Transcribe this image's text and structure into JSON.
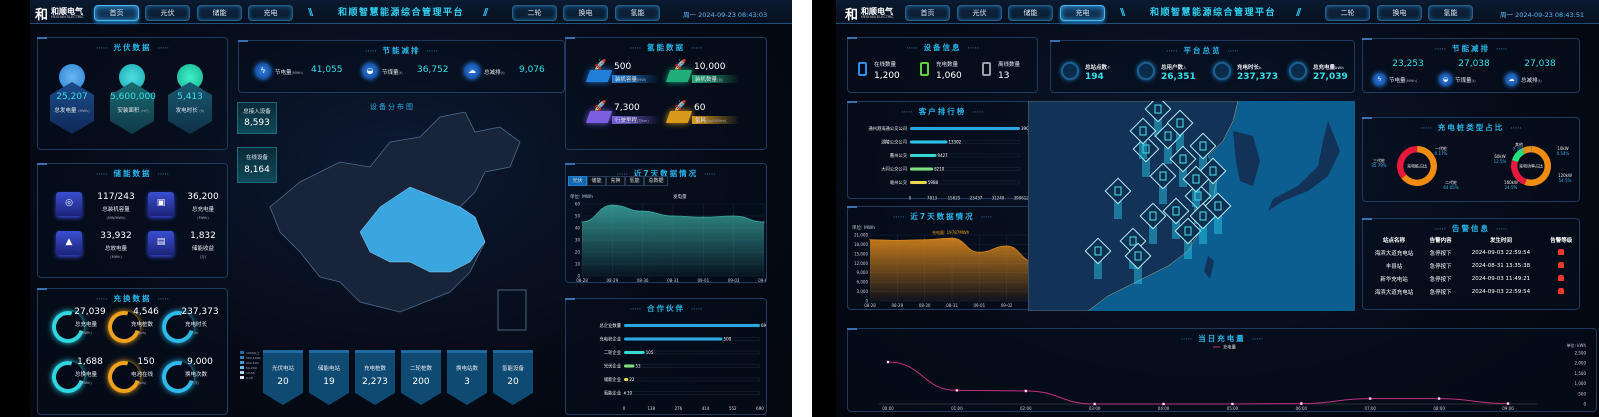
{
  "left": {
    "logo": {
      "mark": "和",
      "cn": "和顺电气",
      "en": "HESHUN ELECTRIC"
    },
    "nav_left": [
      "首页",
      "光伏",
      "储能",
      "充电"
    ],
    "nav_right": [
      "二轮",
      "换电",
      "氢能"
    ],
    "active_tab": "首页",
    "title": "和顺智慧能源综合管理平台",
    "datetime": "周一 2024-09-23 08:43:03",
    "pv": {
      "title": "光伏数据",
      "items": [
        {
          "value": "25,207",
          "label": "总发电量",
          "unit": "(MWh)"
        },
        {
          "value": "5,600,000",
          "label": "安装面积",
          "unit": "(m²)"
        },
        {
          "value": "5,413",
          "label": "发电时长",
          "unit": "(h)"
        }
      ]
    },
    "storage": {
      "title": "储能数据",
      "items": [
        {
          "value": "117/243",
          "label": "总装机容量",
          "unit": "(MW/MWh)"
        },
        {
          "value": "36,200",
          "label": "总充电量",
          "unit": "(MWh)"
        },
        {
          "value": "33,932",
          "label": "总放电量",
          "unit": "(MWh)"
        },
        {
          "value": "1,832",
          "label": "储能收益",
          "unit": "(万)"
        }
      ]
    },
    "swap": {
      "title": "充换数据",
      "items": [
        {
          "value": "27,039",
          "label": "总充电量",
          "unit": "(MWh)",
          "color": "#2fd6e0"
        },
        {
          "value": "4,546",
          "label": "充电桩数",
          "unit": "(pcs)",
          "color": "#f0a21e"
        },
        {
          "value": "237,373",
          "label": "充电时长",
          "unit": "(h)",
          "color": "#2fb8e8"
        },
        {
          "value": "1,688",
          "label": "总换电量",
          "unit": "(MWh)",
          "color": "#2fd6e0"
        },
        {
          "value": "150",
          "label": "电池在线",
          "unit": "(pcs)",
          "color": "#f0a21e"
        },
        {
          "value": "9,000",
          "label": "换电次数",
          "unit": "(次)",
          "color": "#2fb8e8"
        }
      ]
    },
    "saving": {
      "title": "节能减排",
      "items": [
        {
          "label": "节电量",
          "unit": "(MWh)",
          "value": "41,055",
          "icon": "lightning-icon"
        },
        {
          "label": "节煤量",
          "unit": "(t)",
          "value": "36,752",
          "icon": "coal-icon"
        },
        {
          "label": "总减排",
          "unit": "(t)",
          "value": "9,076",
          "icon": "cloud-icon"
        }
      ]
    },
    "devices": {
      "total_label": "总接入设备",
      "total": "8,593",
      "online_label": "在线设备",
      "online": "8,164"
    },
    "map": {
      "title": "设备分布图",
      "legend": [
        "1000以上",
        "500-1000",
        "200-500",
        "50-200",
        "10-50",
        "0-10"
      ]
    },
    "stations": [
      {
        "label": "光伏电站",
        "value": "20"
      },
      {
        "label": "储能电站",
        "value": "19"
      },
      {
        "label": "充电桩数",
        "value": "2,273"
      },
      {
        "label": "二轮桩数",
        "value": "200"
      },
      {
        "label": "换电站数",
        "value": "3"
      },
      {
        "label": "氢能设备",
        "value": "20"
      }
    ],
    "hydrogen": {
      "title": "氢能数据",
      "items": [
        {
          "value": "500",
          "label": "装机容量",
          "unit": "(MW)",
          "color": "#1f7fd8"
        },
        {
          "value": "10,000",
          "label": "装机数量",
          "unit": "(台)",
          "color": "#1fae7a"
        },
        {
          "value": "7,300",
          "label": "行驶里程",
          "unit": "(万km)",
          "color": "#7a5fe0"
        },
        {
          "value": "60",
          "label": "氢耗",
          "unit": "(kg/100km)",
          "color": "#d99a1c"
        }
      ]
    },
    "week": {
      "title": "近7天数据情况",
      "tabs": [
        "光伏",
        "储能",
        "充换",
        "氢能",
        "总数据"
      ],
      "active_tab": "光伏"
    },
    "partners": {
      "title": "合作伙伴"
    }
  },
  "right": {
    "logo": {
      "mark": "和",
      "cn": "和顺电气",
      "en": "HESHUN ELECTRIC"
    },
    "nav_left": [
      "首页",
      "光伏",
      "储能",
      "充电"
    ],
    "nav_right": [
      "二轮",
      "换电",
      "氢能"
    ],
    "active_tab": "充电",
    "title": "和顺智慧能源综合管理平台",
    "datetime": "周一 2024-09-23 08:43:51",
    "device_info": {
      "title": "设备信息",
      "items": [
        {
          "label": "在线数量",
          "value": "1,200",
          "color": "#2f8ff0"
        },
        {
          "label": "充电数量",
          "value": "1,060",
          "color": "#5fd33a"
        },
        {
          "label": "离线数量",
          "value": "13",
          "color": "#9aa0a8"
        }
      ]
    },
    "overview": {
      "title": "平台总览",
      "items": [
        {
          "label": "总站点数",
          "unit": "个",
          "value": "194",
          "icon": "station-icon"
        },
        {
          "label": "总用户数",
          "unit": "人",
          "value": "26,351",
          "icon": "users-icon"
        },
        {
          "label": "充电时长",
          "unit": "h",
          "value": "237,373",
          "icon": "clock-icon"
        },
        {
          "label": "总充电量",
          "unit": "kWh",
          "value": "27,039",
          "icon": "battery-icon"
        }
      ]
    },
    "saving": {
      "title": "节能减排",
      "items": [
        {
          "value": "23,253",
          "label": "节电量",
          "unit": "(MWh)",
          "icon": "lightning-icon"
        },
        {
          "value": "27,038",
          "label": "节煤量",
          "unit": "(t)",
          "icon": "coal-icon"
        },
        {
          "value": "27,038",
          "label": "总减排",
          "unit": "(t)",
          "icon": "cloud-icon"
        }
      ]
    },
    "customers": {
      "title": "客户排行榜"
    },
    "week": {
      "title": "近7天数据情况"
    },
    "pile_types": {
      "title": "充电桩类型占比"
    },
    "alarms": {
      "title": "告警信息",
      "headers": [
        "站点名称",
        "告警内容",
        "发生时间",
        "告警等级"
      ],
      "rows": [
        {
          "station": "海滨大道充电站",
          "content": "急停按下",
          "time": "2024-09-03 22:59:54",
          "level": "alarm-icon"
        },
        {
          "station": "丰县站",
          "content": "急停按下",
          "time": "2024-08-31 13:35:38",
          "level": "alarm-icon"
        },
        {
          "station": "新华充电站",
          "content": "急停按下",
          "time": "2024-09-03 11:49:21",
          "level": "alarm-icon"
        },
        {
          "station": "海滨大道充电站",
          "content": "急停按下",
          "time": "2024-09-03 22:59:54",
          "level": "alarm-icon"
        }
      ]
    },
    "today": {
      "title": "当日充电量"
    }
  },
  "chart_data": [
    {
      "id": "left-week",
      "type": "area",
      "unit_label": "单位: MWh",
      "legend": [
        "发电量"
      ],
      "categories": [
        "08-28",
        "08-29",
        "08-30",
        "08-31",
        "09-01",
        "09-02",
        "09-03"
      ],
      "series": [
        {
          "name": "发电量",
          "values": [
            45,
            59,
            54,
            50,
            49,
            50,
            45
          ]
        }
      ],
      "ylim": [
        0,
        60
      ],
      "yticks": [
        0,
        10,
        20,
        30,
        40,
        50,
        60
      ],
      "color": "#3aa7a0",
      "grid": true
    },
    {
      "id": "partners",
      "type": "hbar",
      "categories": [
        "总企业数量",
        "充电桩企业",
        "二轮企业",
        "光伏企业",
        "储能企业",
        "氢能企业"
      ],
      "values": [
        690,
        500,
        105,
        53,
        22,
        10
      ],
      "xlim": [
        0,
        690
      ],
      "xticks": [
        0,
        138,
        276,
        414,
        552,
        690
      ],
      "xunit": "家",
      "colors": [
        "#2aa7e0",
        "#2aa7e0",
        "#38d9d0",
        "#7fe07f",
        "#e8d94a",
        "#999999"
      ]
    },
    {
      "id": "customers",
      "type": "hbar",
      "categories": [
        "通州港海通公交公司",
        "湖陵公交公司",
        "衢州公交",
        "大同公交公司",
        "亳州公交"
      ],
      "values": [
        39061,
        13302,
        9427,
        8210,
        5988
      ],
      "xlim": [
        0,
        39061
      ],
      "xticks": [
        0,
        7813,
        15625,
        23437,
        31249,
        39061
      ],
      "xunit": "次",
      "colors": [
        "#2aa7e0",
        "#2ac3e8",
        "#38d9d0",
        "#7fe07f",
        "#e8d94a"
      ]
    },
    {
      "id": "right-week",
      "type": "area",
      "unit_label": "单位: MWh",
      "annotation": "充电量: 19787MWh",
      "categories": [
        "08-28",
        "08-29",
        "08-30",
        "08-31",
        "09-01",
        "09-02",
        "09-03"
      ],
      "series": [
        {
          "name": "充电量",
          "values": [
            19500,
            19300,
            19500,
            20000,
            15500,
            17500,
            12500
          ]
        }
      ],
      "ylim": [
        0,
        21000
      ],
      "yticks": [
        0,
        3000,
        6000,
        9000,
        12000,
        15000,
        18000,
        21000
      ],
      "color": "#d9861c",
      "grid": true
    },
    {
      "id": "pile-gen",
      "type": "pie",
      "center_label": "充电桩占比",
      "slices": [
        {
          "name": "一代桩",
          "value": 0.17,
          "color": "#2aa7e0"
        },
        {
          "name": "二代桩",
          "value": 64.05,
          "color": "#f08c10"
        },
        {
          "name": "三代桩",
          "value": 35.78,
          "color": "#e8183c"
        }
      ]
    },
    {
      "id": "pile-power",
      "type": "pie",
      "center_label": "充电功率占比",
      "slices": [
        {
          "name": "10kW",
          "value": 0.54,
          "color": "#2aa7e0"
        },
        {
          "name": "120kW",
          "value": 54.5,
          "color": "#f08c10"
        },
        {
          "name": "160kW",
          "value": 24.5,
          "color": "#e8183c"
        },
        {
          "name": "60kW",
          "value": 12.5,
          "color": "#22e07a"
        },
        {
          "name": "其他",
          "value": 7.75,
          "color": "#f08c10"
        }
      ]
    },
    {
      "id": "today",
      "type": "line",
      "legend": [
        "充电量"
      ],
      "unit_label": "单位: kWh",
      "categories": [
        "00:00",
        "01:00",
        "02:00",
        "03:00",
        "04:00",
        "05:00",
        "06:00",
        "07:00",
        "08:00",
        "09:00"
      ],
      "series": [
        {
          "name": "充电量",
          "values": [
            2060,
            670,
            640,
            0,
            0,
            0,
            20,
            265,
            265,
            20
          ]
        }
      ],
      "ylim": [
        0,
        2500
      ],
      "yticks": [
        0,
        500,
        1000,
        1500,
        2000,
        2500
      ],
      "color": "#c0307f"
    }
  ]
}
